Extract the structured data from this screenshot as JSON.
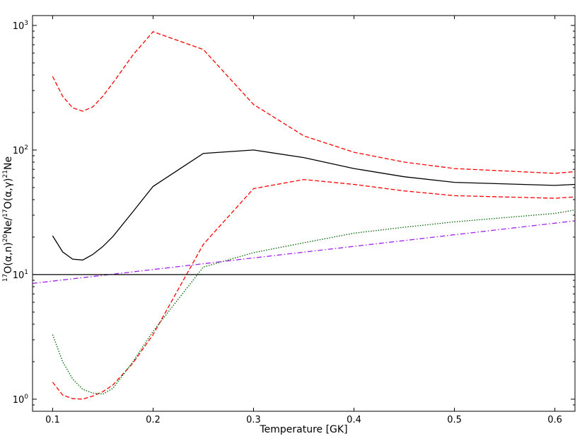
{
  "chart_data": {
    "type": "line",
    "title": "",
    "xlabel": "Temperature [GK]",
    "ylabel_parts": [
      {
        "text": "17",
        "sup": true
      },
      {
        "text": "O(α,n)",
        "sup": false
      },
      {
        "text": "20",
        "sup": true
      },
      {
        "text": "Ne/",
        "sup": false
      },
      {
        "text": "17",
        "sup": true
      },
      {
        "text": "O(α,γ)",
        "sup": false
      },
      {
        "text": "21",
        "sup": true
      },
      {
        "text": "Ne",
        "sup": false
      }
    ],
    "xlim": [
      0.08,
      0.62
    ],
    "ylim": [
      0.8,
      1200
    ],
    "yscale": "log",
    "grid": false,
    "legend": "none",
    "xticks": [
      {
        "value": 0.1,
        "label": "0.1"
      },
      {
        "value": 0.2,
        "label": "0.2"
      },
      {
        "value": 0.3,
        "label": "0.3"
      },
      {
        "value": 0.4,
        "label": "0.4"
      },
      {
        "value": 0.5,
        "label": "0.5"
      },
      {
        "value": 0.6,
        "label": "0.6"
      }
    ],
    "yticks": [
      {
        "value": 1,
        "base": "10",
        "exp": "0"
      },
      {
        "value": 10,
        "base": "10",
        "exp": "1"
      },
      {
        "value": 100,
        "base": "10",
        "exp": "2"
      },
      {
        "value": 1000,
        "base": "10",
        "exp": "3"
      }
    ],
    "series": [
      {
        "style": "solid",
        "color": "#000000",
        "x": [
          0.1,
          0.11,
          0.12,
          0.13,
          0.14,
          0.15,
          0.16,
          0.18,
          0.2,
          0.25,
          0.3,
          0.35,
          0.4,
          0.45,
          0.5,
          0.6,
          0.62
        ],
        "y": [
          20.5,
          15.2,
          13.3,
          13.1,
          14.5,
          16.8,
          20.2,
          32,
          51,
          94,
          100,
          87,
          71,
          61,
          55,
          52,
          53
        ]
      },
      {
        "style": "dashed",
        "color": "#ff0000",
        "x": [
          0.1,
          0.11,
          0.12,
          0.13,
          0.14,
          0.15,
          0.16,
          0.18,
          0.2,
          0.25,
          0.3,
          0.35,
          0.4,
          0.45,
          0.5,
          0.6,
          0.62
        ],
        "y": [
          390,
          270,
          218,
          205,
          222,
          270,
          345,
          580,
          890,
          640,
          232,
          130,
          96,
          80,
          71,
          65,
          67
        ]
      },
      {
        "style": "dashed",
        "color": "#ff0000",
        "x": [
          0.1,
          0.11,
          0.12,
          0.13,
          0.14,
          0.15,
          0.16,
          0.18,
          0.2,
          0.25,
          0.3,
          0.35,
          0.4,
          0.45,
          0.5,
          0.6,
          0.62
        ],
        "y": [
          1.37,
          1.08,
          1.01,
          1.0,
          1.06,
          1.15,
          1.3,
          1.95,
          3.3,
          17.5,
          49,
          58,
          53,
          47,
          43,
          41,
          42
        ]
      },
      {
        "style": "dotted",
        "color": "#006400",
        "x": [
          0.1,
          0.11,
          0.12,
          0.13,
          0.14,
          0.15,
          0.16,
          0.18,
          0.2,
          0.25,
          0.3,
          0.35,
          0.4,
          0.45,
          0.5,
          0.6,
          0.62
        ],
        "y": [
          3.3,
          2.0,
          1.45,
          1.2,
          1.12,
          1.1,
          1.22,
          2.0,
          3.5,
          11.5,
          15,
          18,
          21.5,
          24,
          26.5,
          31,
          33
        ]
      },
      {
        "style": "dashdot",
        "color": "#a020f0",
        "x": [
          0.08,
          0.62
        ],
        "y": [
          8.5,
          27
        ]
      },
      {
        "style": "solid",
        "color": "#000000",
        "x": [
          0.08,
          0.62
        ],
        "y": [
          10,
          10
        ]
      }
    ]
  }
}
